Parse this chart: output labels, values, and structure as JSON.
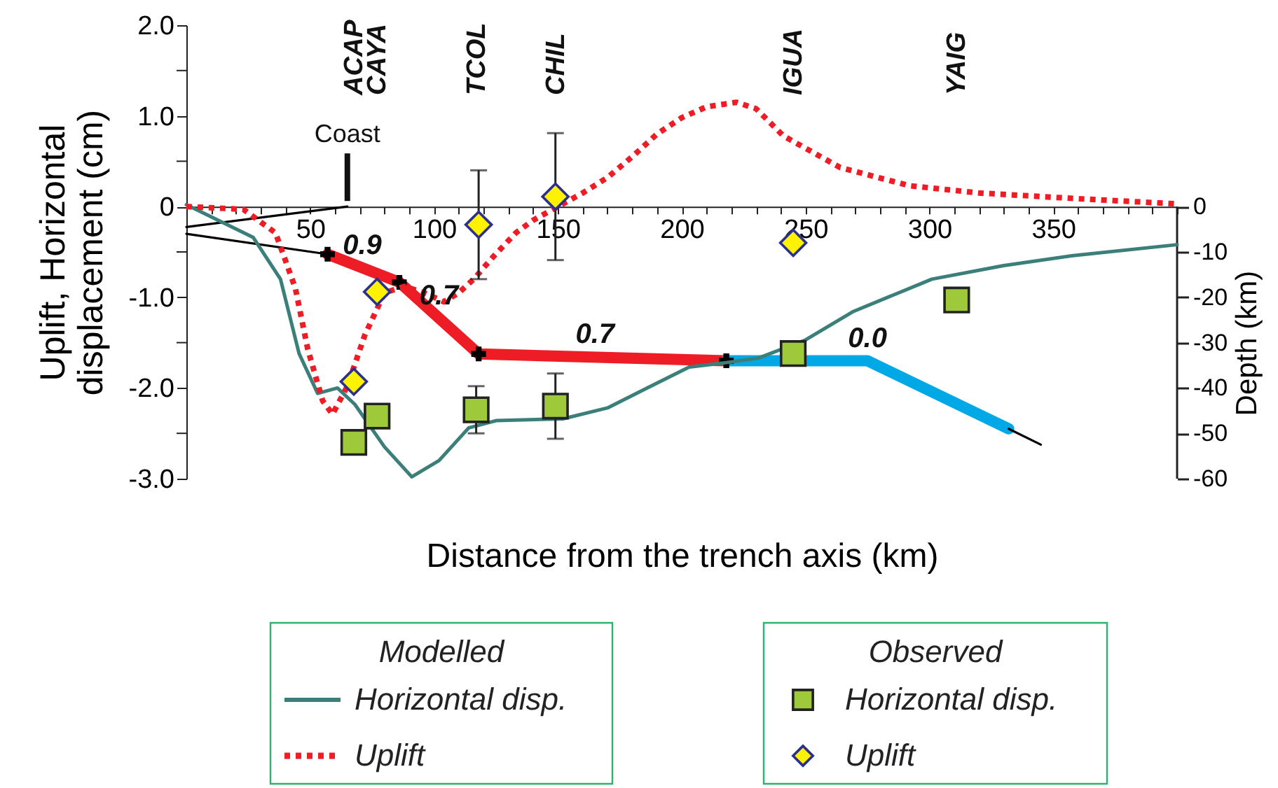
{
  "chart_data": {
    "type": "line",
    "xlabel": "Distance from the trench axis (km)",
    "ylabel": "Uplift, Horizontal displacement (cm)",
    "y2label": "Depth (km)",
    "xlim": [
      0,
      400
    ],
    "ylim": [
      -3,
      2
    ],
    "y2lim": [
      -60,
      40
    ],
    "xticks": [
      {
        "value": 0,
        "label": null
      },
      {
        "value": 10,
        "label": null
      },
      {
        "value": 20,
        "label": null
      },
      {
        "value": 30,
        "label": null
      },
      {
        "value": 40,
        "label": null
      },
      50,
      {
        "value": 60,
        "label": null
      },
      {
        "value": 70,
        "label": null
      },
      {
        "value": 80,
        "label": null
      },
      {
        "value": 90,
        "label": null
      },
      100,
      {
        "value": 110,
        "label": null
      },
      {
        "value": 120,
        "label": null
      },
      {
        "value": 130,
        "label": null
      },
      {
        "value": 140,
        "label": null
      },
      150,
      {
        "value": 160,
        "label": null
      },
      {
        "value": 170,
        "label": null
      },
      {
        "value": 180,
        "label": null
      },
      {
        "value": 190,
        "label": null
      },
      200,
      {
        "value": 210,
        "label": null
      },
      {
        "value": 220,
        "label": null
      },
      {
        "value": 230,
        "label": null
      },
      {
        "value": 240,
        "label": null
      },
      250,
      {
        "value": 260,
        "label": null
      },
      {
        "value": 270,
        "label": null
      },
      {
        "value": 280,
        "label": null
      },
      {
        "value": 290,
        "label": null
      },
      300,
      {
        "value": 310,
        "label": null
      },
      {
        "value": 320,
        "label": null
      },
      {
        "value": 330,
        "label": null
      },
      {
        "value": 340,
        "label": null
      },
      350,
      {
        "value": 360,
        "label": null
      },
      {
        "value": 370,
        "label": null
      },
      {
        "value": 380,
        "label": null
      },
      {
        "value": 390,
        "label": null
      },
      {
        "value": 400,
        "label": null
      }
    ],
    "yticks": [
      {
        "value": 2,
        "label": "2.0"
      },
      {
        "value": 1.5,
        "label": null
      },
      {
        "value": 1,
        "label": "1.0"
      },
      {
        "value": 0.5,
        "label": null
      },
      0,
      {
        "value": -0.5,
        "label": null
      },
      {
        "value": -1,
        "label": "-1.0"
      },
      {
        "value": -1.5,
        "label": null
      },
      {
        "value": -2,
        "label": "-2.0"
      },
      {
        "value": -2.5,
        "label": null
      },
      {
        "value": -3,
        "label": "-3.0"
      }
    ],
    "y2ticks": [
      0,
      -10,
      -20,
      -30,
      -40,
      -50,
      -60
    ],
    "grid": false,
    "legend": "bottom",
    "series": [
      {
        "name": "Horizontal disp.",
        "type": "line",
        "color": "#3b7f7a",
        "x": [
          0,
          27,
          38,
          45.5,
          53,
          61,
          68,
          80,
          91,
          102,
          114,
          125,
          152,
          170,
          186,
          203,
          218,
          231,
          250,
          269,
          301,
          330,
          358,
          400
        ],
        "values": [
          0.02,
          -0.34,
          -0.8,
          -1.62,
          -2.06,
          -2.0,
          -2.18,
          -2.65,
          -2.98,
          -2.8,
          -2.44,
          -2.36,
          -2.34,
          -2.22,
          -2.0,
          -1.77,
          -1.72,
          -1.67,
          -1.47,
          -1.16,
          -0.8,
          -0.65,
          -0.54,
          -0.42
        ]
      },
      {
        "name": "Uplift",
        "type": "line",
        "line_style": "dotted",
        "color": "#ee1c25",
        "x": [
          0,
          23,
          36,
          44,
          49,
          55,
          59,
          65,
          72,
          80,
          88,
          96,
          104,
          110,
          116,
          124,
          133,
          140,
          148,
          160,
          170,
          180,
          190,
          200,
          210,
          222,
          230,
          241,
          264,
          292,
          320,
          358,
          400
        ],
        "values": [
          0,
          -0.03,
          -0.29,
          -0.9,
          -1.57,
          -2.14,
          -2.29,
          -1.98,
          -1.42,
          -0.95,
          -0.88,
          -0.95,
          -1.05,
          -0.95,
          -0.8,
          -0.55,
          -0.29,
          -0.15,
          -0.03,
          0.15,
          0.32,
          0.55,
          0.8,
          0.98,
          1.1,
          1.15,
          1.08,
          0.78,
          0.43,
          0.23,
          0.15,
          0.09,
          0.03
        ]
      },
      {
        "name": "Horizontal disp.",
        "type": "scatter",
        "marker": "square",
        "color": "#9dc93b",
        "x": [
          67.6,
          77,
          117,
          149,
          245,
          311
        ],
        "values": [
          -2.6,
          -2.31,
          -2.24,
          -2.2,
          -1.62,
          -1.03
        ],
        "errors": [
          null,
          null,
          0.26,
          0.36,
          null,
          null
        ]
      },
      {
        "name": "Uplift",
        "type": "scatter",
        "marker": "diamond",
        "color": "#fff200",
        "x": [
          67.6,
          77,
          118,
          149,
          245
        ],
        "values": [
          -1.93,
          -0.94,
          -0.2,
          0.11,
          -0.4
        ],
        "errors": [
          null,
          null,
          0.6,
          0.7,
          null
        ]
      },
      {
        "type": "line",
        "axis": "y2",
        "color": "#000000",
        "x": [
          0,
          65
        ],
        "values": [
          -4.5,
          0
        ]
      },
      {
        "type": "line",
        "axis": "y2",
        "color": "#000000",
        "x": [
          0,
          57
        ],
        "values": [
          -6,
          -10.5
        ]
      },
      {
        "type": "line",
        "axis": "y2",
        "color": "#ee1c25",
        "x": [
          57,
          86,
          118,
          218
        ],
        "values": [
          -10.5,
          -16.7,
          -32.5,
          -34
        ]
      },
      {
        "type": "line",
        "axis": "y2",
        "color": "#00a9e6",
        "x": [
          218,
          275,
          332
        ],
        "values": [
          -34,
          -34,
          -49
        ]
      },
      {
        "type": "line",
        "axis": "y2",
        "color": "#000000",
        "x": [
          332,
          345
        ],
        "values": [
          -49,
          -52.5
        ]
      },
      {
        "type": "scatter",
        "axis": "y2",
        "marker": "cross",
        "color": "#000000",
        "x": [
          57,
          86,
          118,
          218
        ],
        "values": [
          -10.5,
          -16.7,
          -32.5,
          -34
        ]
      }
    ],
    "annotations": [
      "ACAP",
      "CAYA",
      "TCOL",
      "CHIL",
      "IGUA",
      "YAIG",
      {
        "text": "Coast",
        "x": 65,
        "y": 0
      },
      {
        "text": "0.9",
        "x": 71,
        "y": -0.675
      },
      {
        "text": "0.7",
        "x": 102,
        "y": -1.23
      },
      {
        "text": "0.7",
        "x": 165,
        "y": -1.66
      },
      {
        "text": "0.0",
        "x": 275,
        "y": -1.7
      },
      "Modelled",
      "Observed"
    ]
  }
}
